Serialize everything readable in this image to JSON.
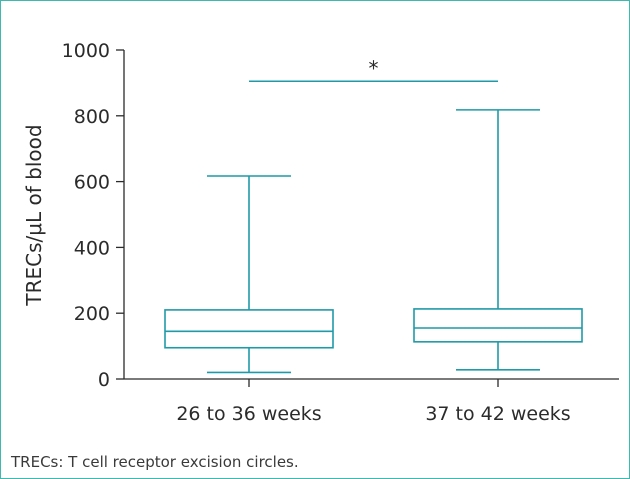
{
  "chart_data": {
    "type": "box",
    "title": "",
    "xlabel": "",
    "ylabel": "TRECs/μL of blood",
    "ylim": [
      0,
      1000
    ],
    "yticks": [
      0,
      200,
      400,
      600,
      800,
      1000
    ],
    "grid": false,
    "categories": [
      "26 to 36 weeks",
      "37 to 42 weeks"
    ],
    "boxes": [
      {
        "category": "26 to 36 weeks",
        "min": 20,
        "q1": 95,
        "median": 145,
        "q3": 210,
        "max": 617
      },
      {
        "category": "37 to 42 weeks",
        "min": 28,
        "q1": 113,
        "median": 155,
        "q3": 213,
        "max": 818
      }
    ],
    "significance": {
      "label": "*",
      "from": "26 to 36 weeks",
      "to": "37 to 42 weeks",
      "y": 905
    },
    "colors": {
      "box": "#1f9aa8",
      "axis": "#2b2b2b",
      "frame": "#3fb8b0"
    }
  },
  "footnote": "TRECs: T cell receptor excision circles."
}
